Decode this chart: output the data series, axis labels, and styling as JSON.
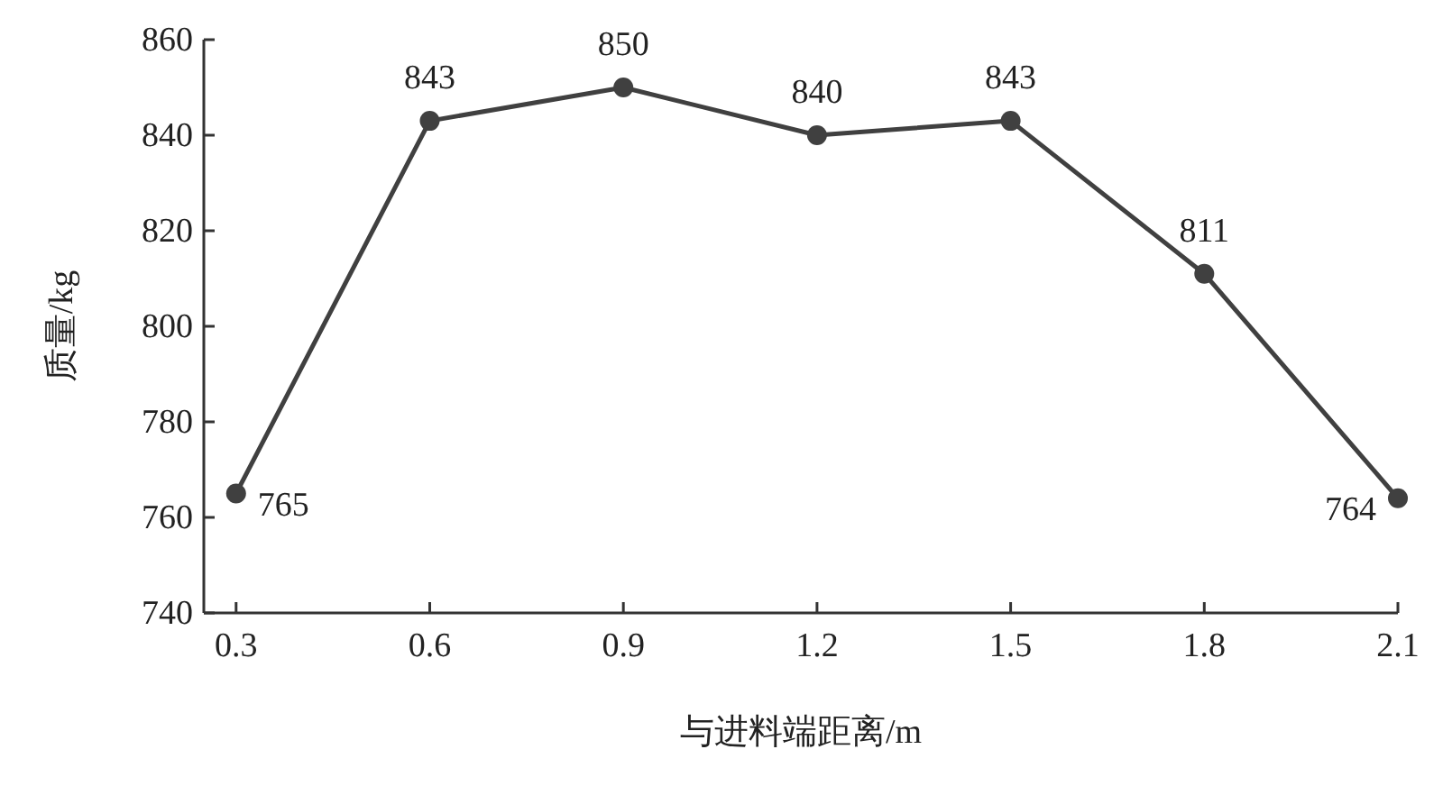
{
  "chart_data": {
    "type": "line",
    "xlabel": "与进料端距离/m",
    "ylabel": "质量/kg",
    "x": [
      0.3,
      0.6,
      0.9,
      1.2,
      1.5,
      1.8,
      2.1
    ],
    "series": [
      {
        "color": "#404040",
        "values": [
          765,
          843,
          850,
          840,
          843,
          811,
          764
        ]
      }
    ],
    "xlim": [
      0.25,
      2.1
    ],
    "xticks": [
      0.3,
      0.6,
      0.9,
      1.2,
      1.5,
      1.8,
      2.1
    ],
    "ylim": [
      740,
      860
    ],
    "yticks": [
      740,
      760,
      780,
      800,
      820,
      840,
      860
    ],
    "marker": "circle",
    "line_style": "solid",
    "data_labels": true
  }
}
